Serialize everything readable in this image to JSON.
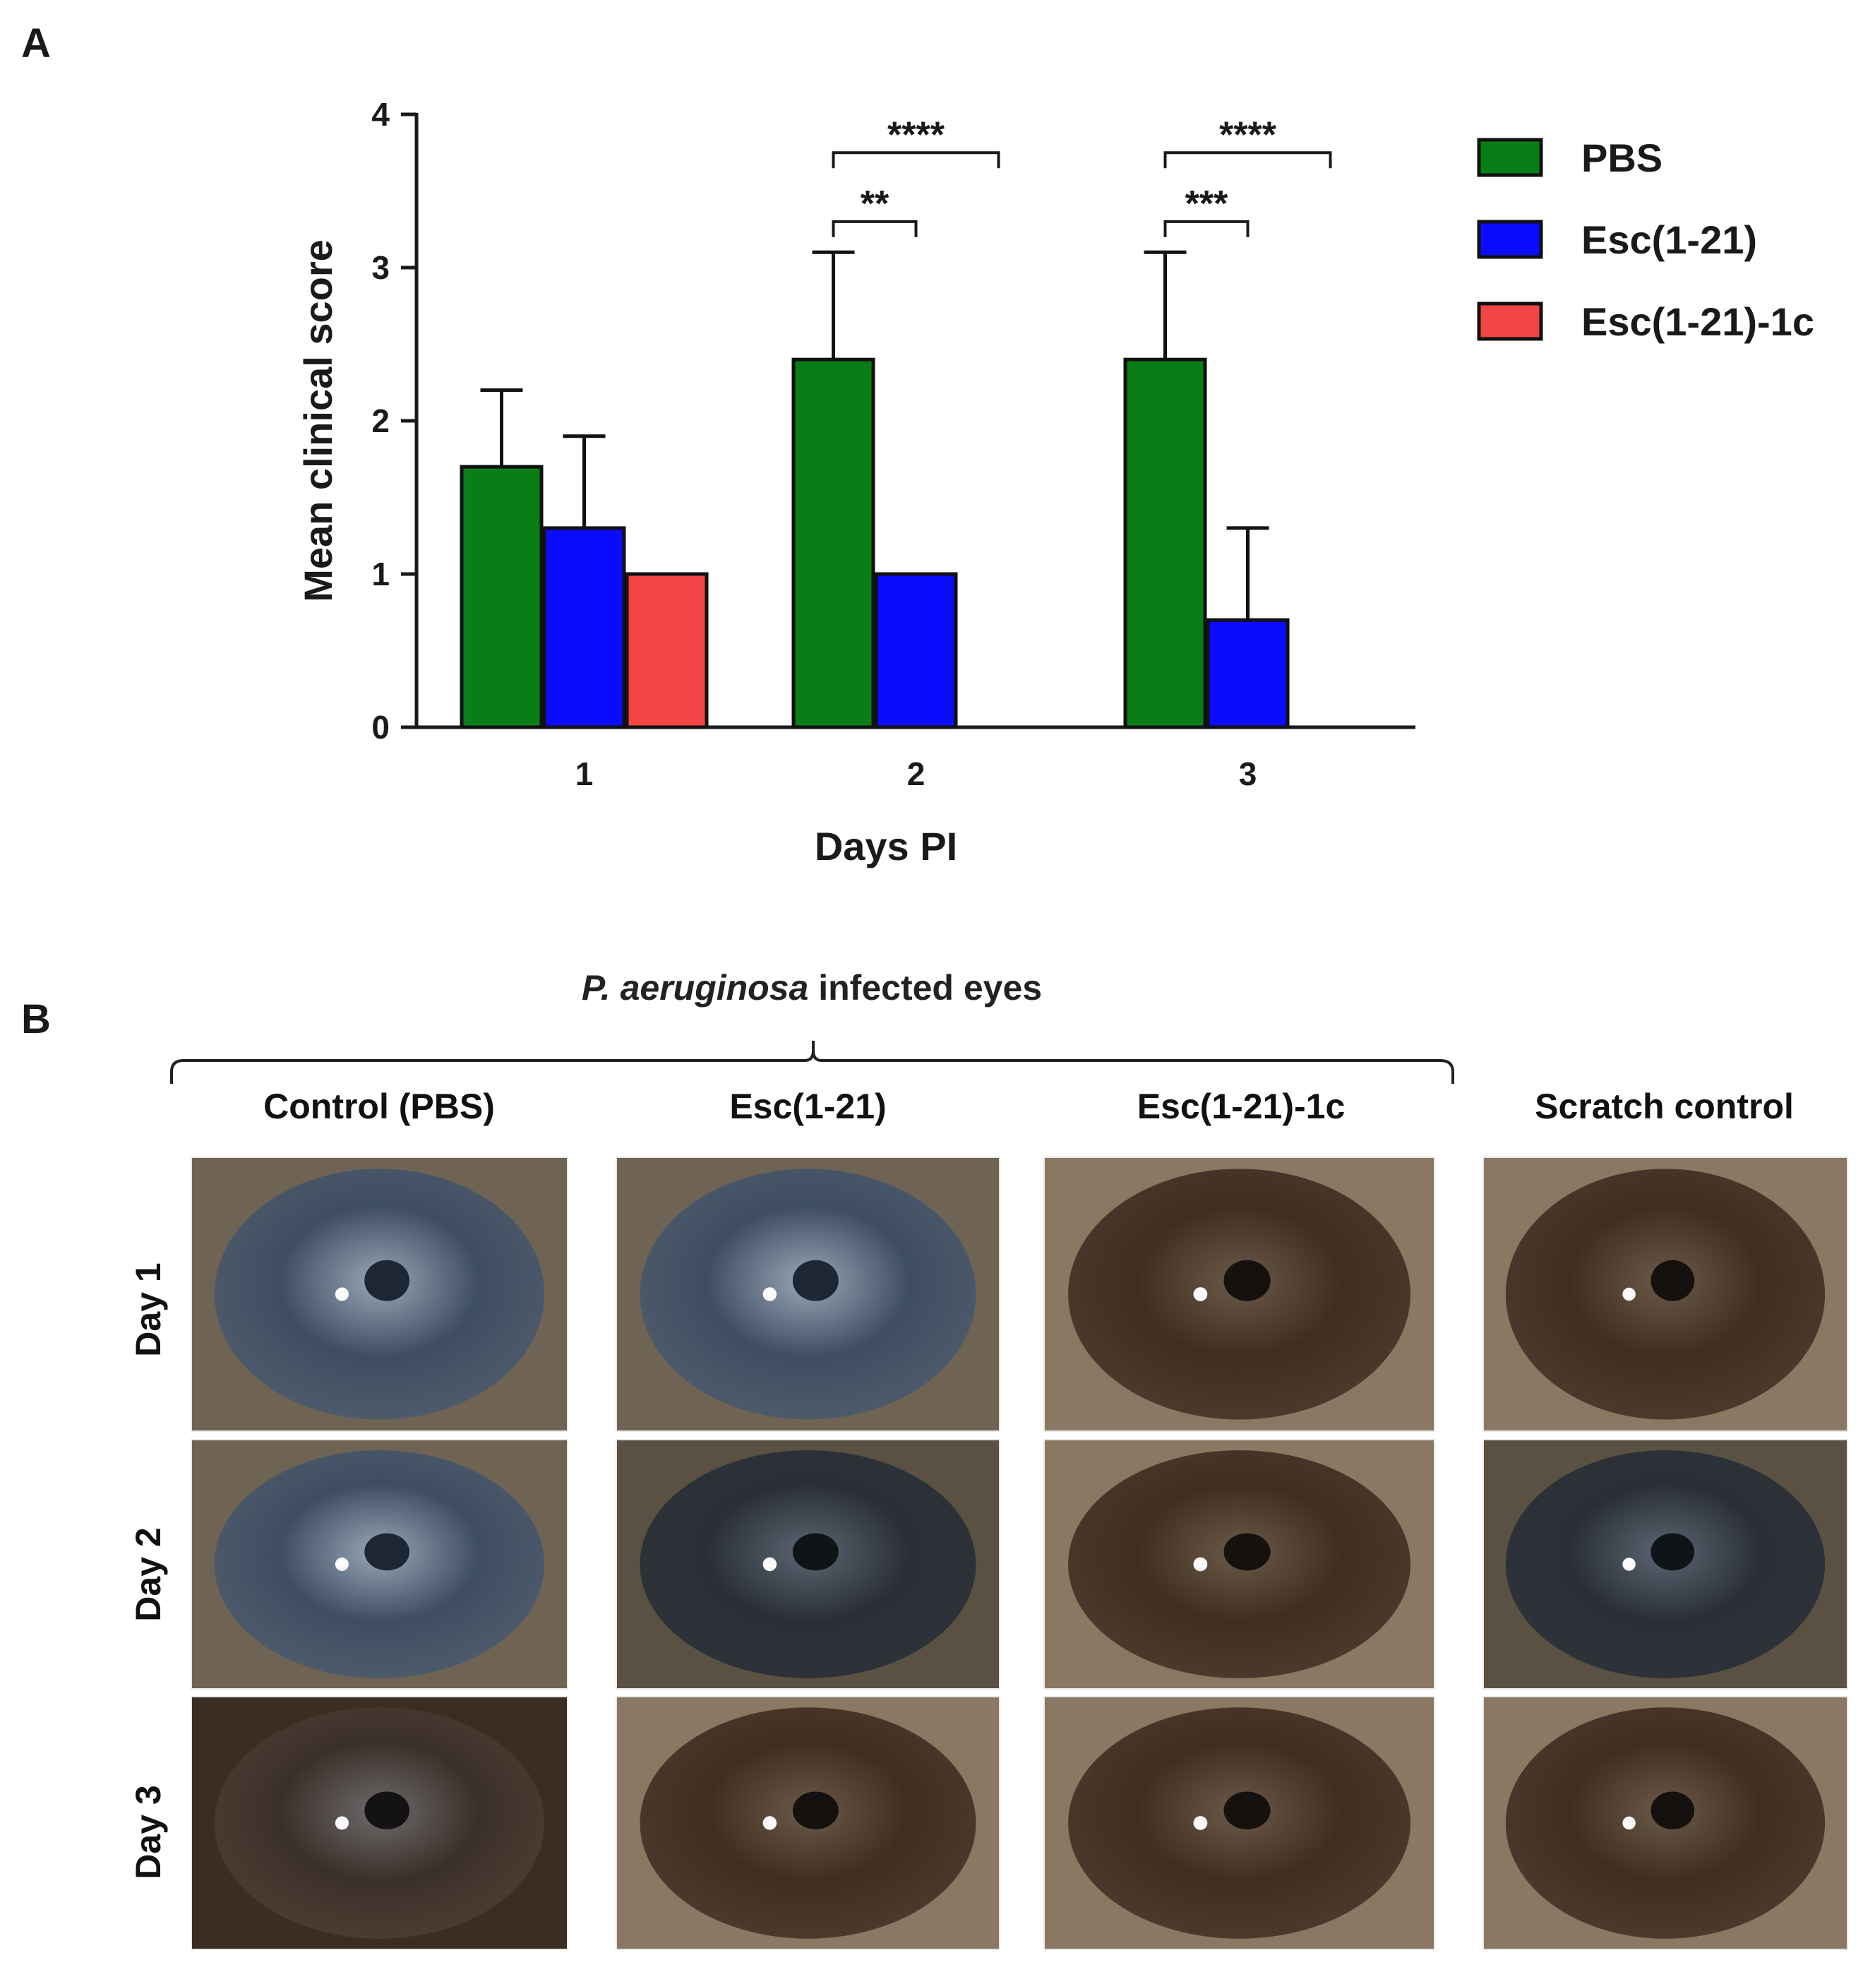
{
  "panel_a": {
    "letter": "A"
  },
  "panel_b": {
    "letter": "B",
    "group_title_italic": "P. aeruginosa",
    "group_title_rest": "infected eyes",
    "columns": [
      "Control (PBS)",
      "Esc(1-21)",
      "Esc(1-21)-1c",
      "Scratch control"
    ],
    "rows": [
      "Day 1",
      "Day 2",
      "Day 3"
    ]
  },
  "colors": {
    "pbs": "#0b7d17",
    "esc": "#0b0bff",
    "esc1c": "#f44545",
    "axis": "#1a1a1a"
  },
  "chart_data": {
    "type": "bar",
    "title": "",
    "xlabel": "Days PI",
    "ylabel": "Mean clinical score",
    "ylim": [
      0,
      4
    ],
    "yticks": [
      "0",
      "1",
      "2",
      "3",
      "4"
    ],
    "categories": [
      "1",
      "2",
      "3"
    ],
    "series": [
      {
        "name": "PBS",
        "values": [
          1.7,
          2.4,
          2.4
        ],
        "errors": [
          0.5,
          0.7,
          0.7
        ]
      },
      {
        "name": "Esc(1-21)",
        "values": [
          1.3,
          1.0,
          0.7
        ],
        "errors": [
          0.6,
          0,
          0.6
        ]
      },
      {
        "name": "Esc(1-21)-1c",
        "values": [
          1.0,
          null,
          null
        ],
        "errors": [
          0,
          null,
          null
        ]
      }
    ],
    "significance": [
      {
        "day": "2",
        "label": "**",
        "from_series": 0,
        "to_series": 1,
        "level": 3.3
      },
      {
        "day": "2",
        "label": "****",
        "from_series": 0,
        "to_series": 2,
        "level": 3.75
      },
      {
        "day": "3",
        "label": "***",
        "from_series": 0,
        "to_series": 1,
        "level": 3.3
      },
      {
        "day": "3",
        "label": "****",
        "from_series": 0,
        "to_series": 2,
        "level": 3.75
      }
    ],
    "legend": "right"
  },
  "photos": [
    [
      "blue-gray",
      "blue-gray",
      "brown",
      "brown"
    ],
    [
      "blue-gray",
      "dark",
      "brown",
      "dark"
    ],
    [
      "dark-brown",
      "brown",
      "brown",
      "brown"
    ]
  ]
}
